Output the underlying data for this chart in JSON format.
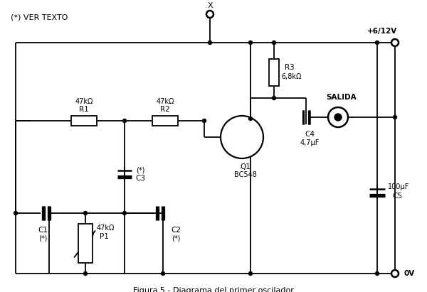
{
  "title": "Figura 5 - Diagrama del primer oscilador",
  "bg_color": "#ffffff",
  "line_color": "#000000",
  "fig_width": 6.0,
  "fig_height": 4.11,
  "dpi": 100,
  "components": {
    "note": "(*) VER TEXTO",
    "R1_label": "R1",
    "R1_value": "47kΩ",
    "R2_label": "R2",
    "R2_value": "47kΩ",
    "R3_label": "R3",
    "R3_value": "6,8kΩ",
    "P1_label": "P1",
    "P1_value": "47kΩ",
    "C1_label": "C1",
    "C1_value": "(*)",
    "C2_label": "C2",
    "C2_value": "(*)",
    "C3_label": "C3",
    "C3_value": "(*)",
    "C4_label": "C4",
    "C4_value": "4,7μF",
    "C5_label": "C5",
    "C5_value": "100μF",
    "Q1_label": "Q1",
    "Q1_value": "BC548",
    "VCC": "+6/12V",
    "GND": "0V",
    "X_label": "X",
    "SALIDA": "SALIDA"
  }
}
